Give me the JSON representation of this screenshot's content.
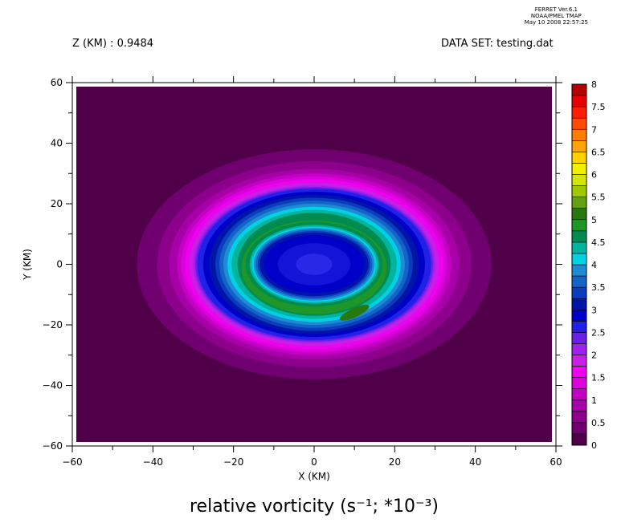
{
  "header": {
    "z_label": "Z (KM) : 0.9484",
    "dataset_label": "DATA SET: testing.dat",
    "stamp_line1": "FERRET Ver.6.1",
    "stamp_line2": "NOAA/PMEL TMAP",
    "stamp_line3": "May 10 2008 22:57:25"
  },
  "chart_data": {
    "type": "heatmap",
    "subtype": "filled-contour",
    "title": "relative vorticity (s⁻¹; *10⁻³)",
    "xlabel": "X (KM)",
    "ylabel": "Y (KM)",
    "xlim": [
      -60,
      60
    ],
    "ylim": [
      -60,
      60
    ],
    "xticks": [
      -60,
      -40,
      -20,
      0,
      20,
      40,
      60
    ],
    "yticks": [
      -60,
      -40,
      -20,
      0,
      20,
      40,
      60
    ],
    "x_tick_labels": [
      "−60",
      "−40",
      "−20",
      "0",
      "20",
      "40",
      "60"
    ],
    "y_tick_labels": [
      "−60",
      "−40",
      "−20",
      "0",
      "20",
      "40",
      "60"
    ],
    "center": [
      0,
      0
    ],
    "colorbar": {
      "levels": [
        0,
        0.25,
        0.5,
        0.75,
        1,
        1.25,
        1.5,
        1.75,
        2,
        2.25,
        2.5,
        2.75,
        3,
        3.25,
        3.5,
        3.75,
        4,
        4.25,
        4.5,
        4.75,
        5,
        5.25,
        5.5,
        5.75,
        6,
        6.25,
        6.5,
        6.75,
        7,
        7.25,
        7.5,
        7.75,
        8
      ],
      "labels": [
        "0",
        "0.5",
        "1",
        "1.5",
        "2",
        "2.5",
        "3",
        "3.5",
        "4",
        "4.5",
        "5",
        "5.5",
        "6",
        "6.5",
        "7",
        "7.5",
        "8"
      ],
      "colors": [
        "#4f0048",
        "#700070",
        "#8c008c",
        "#a800a8",
        "#c400c4",
        "#dc00dc",
        "#f000f0",
        "#c81ee6",
        "#a020f0",
        "#6a1ee8",
        "#2020e6",
        "#0000c8",
        "#0014a8",
        "#0a3cbe",
        "#1464c8",
        "#1e8cd2",
        "#00d2e6",
        "#00b4a0",
        "#008c50",
        "#1e9628",
        "#287810",
        "#64a010",
        "#a0c800",
        "#d2e600",
        "#f0f000",
        "#ffd200",
        "#ffa500",
        "#ff7d00",
        "#ff4b00",
        "#ff1e00",
        "#e60000",
        "#b40000",
        "#780000"
      ]
    },
    "contour_bands": [
      {
        "level": 0.25,
        "rx": 44,
        "ry": 38,
        "cx": 0,
        "cy": 0,
        "color": "#700070"
      },
      {
        "level": 0.5,
        "rx": 39,
        "ry": 34,
        "cx": 0,
        "cy": 0,
        "color": "#8c008c"
      },
      {
        "level": 0.75,
        "rx": 36,
        "ry": 31.5,
        "cx": 0,
        "cy": 0,
        "color": "#a800a8"
      },
      {
        "level": 1.0,
        "rx": 34,
        "ry": 30,
        "cx": 0,
        "cy": 0,
        "color": "#c400c4"
      },
      {
        "level": 1.25,
        "rx": 33,
        "ry": 29,
        "cx": 0,
        "cy": 0,
        "color": "#dc00dc"
      },
      {
        "level": 1.5,
        "rx": 32,
        "ry": 28,
        "cx": 0,
        "cy": 0,
        "color": "#f000f0"
      },
      {
        "level": 1.75,
        "rx": 31,
        "ry": 27,
        "cx": 0,
        "cy": 0,
        "color": "#c81ee6"
      },
      {
        "level": 2.0,
        "rx": 30,
        "ry": 26,
        "cx": 0,
        "cy": 0,
        "color": "#a020f0"
      },
      {
        "level": 2.25,
        "rx": 29.5,
        "ry": 25.5,
        "cx": 0,
        "cy": 0,
        "color": "#6a1ee8"
      },
      {
        "level": 2.5,
        "rx": 29,
        "ry": 25,
        "cx": 0,
        "cy": 0,
        "color": "#2020e6"
      },
      {
        "level": 2.75,
        "rx": 27.5,
        "ry": 24,
        "cx": 0,
        "cy": 0,
        "color": "#0000c8"
      },
      {
        "level": 3.0,
        "rx": 26,
        "ry": 23,
        "cx": 0,
        "cy": 0,
        "color": "#0014a8"
      },
      {
        "level": 3.25,
        "rx": 24.5,
        "ry": 22,
        "cx": 0,
        "cy": 0,
        "color": "#0a3cbe"
      },
      {
        "level": 3.5,
        "rx": 23.5,
        "ry": 21,
        "cx": 0,
        "cy": 0,
        "color": "#1464c8"
      },
      {
        "level": 3.75,
        "rx": 22.5,
        "ry": 20,
        "cx": 0,
        "cy": 0,
        "color": "#1e8cd2"
      },
      {
        "level": 4.0,
        "rx": 21.5,
        "ry": 19,
        "cx": 0,
        "cy": 0,
        "color": "#00d2e6"
      },
      {
        "level": 4.25,
        "rx": 20.5,
        "ry": 18,
        "cx": 0,
        "cy": 0,
        "color": "#00b4a0"
      },
      {
        "level": 4.5,
        "rx": 19,
        "ry": 17,
        "cx": 0,
        "cy": 0,
        "color": "#008c50"
      },
      {
        "level": 4.75,
        "rx": 18,
        "ry": 15.5,
        "cx": 0,
        "cy": -1,
        "color": "#1e9628"
      },
      {
        "level": 4.5,
        "rx": 17,
        "ry": 14,
        "cx": 0,
        "cy": 0,
        "color": "#008c50"
      },
      {
        "level": 4.25,
        "rx": 16,
        "ry": 13,
        "cx": 0,
        "cy": 0,
        "color": "#00b4a0"
      },
      {
        "level": 4.0,
        "rx": 15.5,
        "ry": 12.5,
        "cx": 0,
        "cy": 0,
        "color": "#00d2e6"
      },
      {
        "level": 3.75,
        "rx": 15,
        "ry": 12,
        "cx": 0,
        "cy": 0,
        "color": "#1e8cd2"
      },
      {
        "level": 3.5,
        "rx": 14.5,
        "ry": 11.5,
        "cx": 0,
        "cy": 0,
        "color": "#1464c8"
      },
      {
        "level": 3.25,
        "rx": 14,
        "ry": 11,
        "cx": 0,
        "cy": 0,
        "color": "#0a3cbe"
      },
      {
        "level": 3.0,
        "rx": 13.5,
        "ry": 10.5,
        "cx": 0,
        "cy": 0,
        "color": "#0014a8"
      },
      {
        "level": 2.75,
        "rx": 12.5,
        "ry": 9.5,
        "cx": 0,
        "cy": 0,
        "color": "#0000c8"
      },
      {
        "level": 2.5,
        "rx": 9,
        "ry": 7,
        "cx": 0,
        "cy": 0,
        "color": "#1414d8"
      },
      {
        "level": 2.25,
        "rx": 4.5,
        "ry": 3.5,
        "cx": 0,
        "cy": 0,
        "color": "#2828e6"
      }
    ],
    "annotations": [
      {
        "label": "green highlight",
        "x": 10,
        "y": -16,
        "rx": 4,
        "ry": 1.5,
        "color": "#287810"
      }
    ]
  }
}
